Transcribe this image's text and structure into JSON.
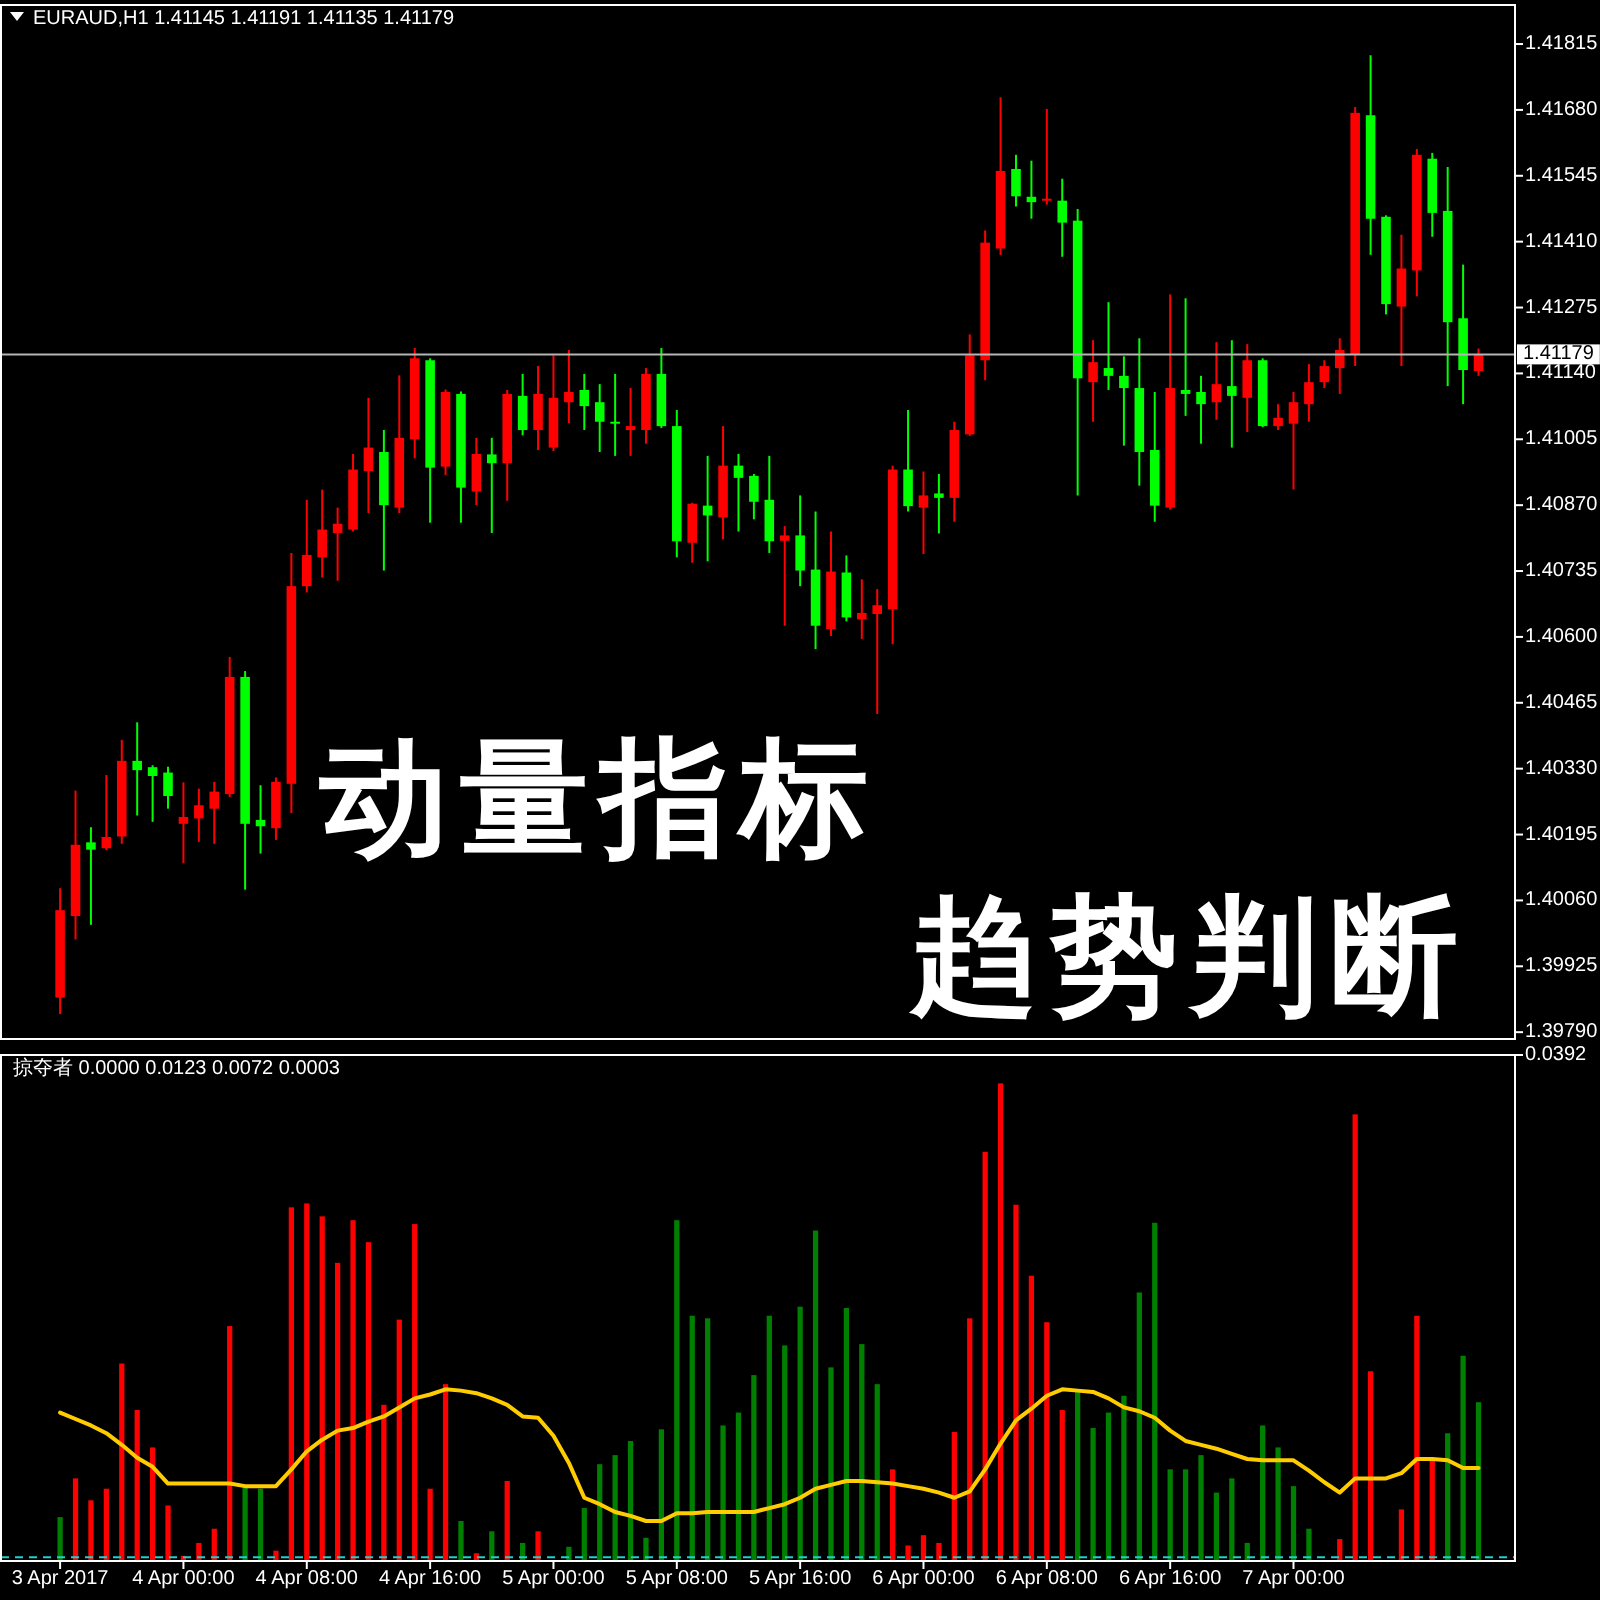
{
  "chart_data": [
    {
      "type": "candlestick",
      "title": "EURAUD,H1 1.41145 1.41191 1.41135 1.41179",
      "annotations": [
        "动量指标",
        "趋势判断"
      ],
      "x": [
        "2017-04-03T16:00",
        "2017-04-03T17:00",
        "2017-04-03T18:00",
        "2017-04-03T19:00",
        "2017-04-03T20:00",
        "2017-04-03T21:00",
        "2017-04-03T22:00",
        "2017-04-03T23:00",
        "2017-04-04T00:00",
        "2017-04-04T01:00",
        "2017-04-04T02:00",
        "2017-04-04T03:00",
        "2017-04-04T04:00",
        "2017-04-04T05:00",
        "2017-04-04T06:00",
        "2017-04-04T07:00",
        "2017-04-04T08:00",
        "2017-04-04T09:00",
        "2017-04-04T10:00",
        "2017-04-04T11:00",
        "2017-04-04T12:00",
        "2017-04-04T13:00",
        "2017-04-04T14:00",
        "2017-04-04T15:00",
        "2017-04-04T16:00",
        "2017-04-04T17:00",
        "2017-04-04T18:00",
        "2017-04-04T19:00",
        "2017-04-04T20:00",
        "2017-04-04T21:00",
        "2017-04-04T22:00",
        "2017-04-04T23:00",
        "2017-04-05T00:00",
        "2017-04-05T01:00",
        "2017-04-05T02:00",
        "2017-04-05T03:00",
        "2017-04-05T04:00",
        "2017-04-05T05:00",
        "2017-04-05T06:00",
        "2017-04-05T07:00",
        "2017-04-05T08:00",
        "2017-04-05T09:00",
        "2017-04-05T10:00",
        "2017-04-05T11:00",
        "2017-04-05T12:00",
        "2017-04-05T13:00",
        "2017-04-05T14:00",
        "2017-04-05T15:00",
        "2017-04-05T16:00",
        "2017-04-05T17:00",
        "2017-04-05T18:00",
        "2017-04-05T19:00",
        "2017-04-05T20:00",
        "2017-04-05T21:00",
        "2017-04-05T22:00",
        "2017-04-05T23:00",
        "2017-04-06T00:00",
        "2017-04-06T01:00",
        "2017-04-06T02:00",
        "2017-04-06T03:00",
        "2017-04-06T04:00",
        "2017-04-06T05:00",
        "2017-04-06T06:00",
        "2017-04-06T07:00",
        "2017-04-06T08:00",
        "2017-04-06T09:00",
        "2017-04-06T10:00",
        "2017-04-06T11:00",
        "2017-04-06T12:00",
        "2017-04-06T13:00",
        "2017-04-06T14:00",
        "2017-04-06T15:00",
        "2017-04-06T16:00",
        "2017-04-06T17:00",
        "2017-04-06T18:00",
        "2017-04-06T19:00",
        "2017-04-06T20:00",
        "2017-04-06T21:00",
        "2017-04-06T22:00",
        "2017-04-06T23:00",
        "2017-04-07T00:00",
        "2017-04-07T01:00",
        "2017-04-07T02:00",
        "2017-04-07T03:00",
        "2017-04-07T04:00",
        "2017-04-07T05:00",
        "2017-04-07T06:00",
        "2017-04-07T07:00",
        "2017-04-07T08:00",
        "2017-04-07T09:00",
        "2017-04-07T10:00",
        "2017-04-07T11:00",
        "2017-04-07T12:00"
      ],
      "ohlc": [
        [
          1.39861,
          1.40085,
          1.39827,
          1.4004
        ],
        [
          1.40028,
          1.40285,
          1.3998,
          1.40174
        ],
        [
          1.40179,
          1.4021,
          1.4001,
          1.40164
        ],
        [
          1.40167,
          1.40317,
          1.40163,
          1.4019
        ],
        [
          1.40191,
          1.40389,
          1.40176,
          1.40346
        ],
        [
          1.40346,
          1.40425,
          1.40234,
          1.40327
        ],
        [
          1.40333,
          1.40337,
          1.40221,
          1.40315
        ],
        [
          1.40322,
          1.40334,
          1.40248,
          1.40274
        ],
        [
          1.40217,
          1.40302,
          1.40136,
          1.40231
        ],
        [
          1.40228,
          1.40289,
          1.4018,
          1.40255
        ],
        [
          1.40248,
          1.40303,
          1.40176,
          1.40283
        ],
        [
          1.40278,
          1.40559,
          1.40272,
          1.40518
        ],
        [
          1.40518,
          1.4053,
          1.40082,
          1.40217
        ],
        [
          1.40225,
          1.40296,
          1.40156,
          1.40212
        ],
        [
          1.40208,
          1.40312,
          1.40184,
          1.40303
        ],
        [
          1.40299,
          1.40772,
          1.40239,
          1.40704
        ],
        [
          1.40704,
          1.40881,
          1.40691,
          1.40768
        ],
        [
          1.40763,
          1.40902,
          1.40722,
          1.4082
        ],
        [
          1.40813,
          1.40865,
          1.40715,
          1.40832
        ],
        [
          1.4082,
          1.40975,
          1.40816,
          1.40943
        ],
        [
          1.4094,
          1.4109,
          1.40854,
          1.40988
        ],
        [
          1.40979,
          1.41024,
          1.40736,
          1.4087
        ],
        [
          1.40865,
          1.41136,
          1.40854,
          1.41008
        ],
        [
          1.41005,
          1.41192,
          1.40966,
          1.41171
        ],
        [
          1.41167,
          1.41171,
          1.40834,
          1.40947
        ],
        [
          1.40949,
          1.41107,
          1.40932,
          1.41102
        ],
        [
          1.41098,
          1.41103,
          1.40834,
          1.40906
        ],
        [
          1.40898,
          1.41008,
          1.4087,
          1.40975
        ],
        [
          1.40974,
          1.41008,
          1.40813,
          1.40956
        ],
        [
          1.40956,
          1.41106,
          1.40879,
          1.41098
        ],
        [
          1.41094,
          1.41139,
          1.41013,
          1.41024
        ],
        [
          1.41024,
          1.41155,
          1.40983,
          1.41098
        ],
        [
          1.40988,
          1.41177,
          1.40981,
          1.4109
        ],
        [
          1.41081,
          1.41188,
          1.41038,
          1.41102
        ],
        [
          1.41106,
          1.41139,
          1.41024,
          1.41073
        ],
        [
          1.41081,
          1.41118,
          1.40979,
          1.41041
        ],
        [
          1.41041,
          1.41139,
          1.40971,
          1.41037
        ],
        [
          1.41024,
          1.4111,
          1.40971,
          1.41032
        ],
        [
          1.41024,
          1.41151,
          1.40996,
          1.41139
        ],
        [
          1.41139,
          1.41192,
          1.41028,
          1.41032
        ],
        [
          1.41032,
          1.41065,
          1.40763,
          1.40796
        ],
        [
          1.40793,
          1.40875,
          1.40752,
          1.40873
        ],
        [
          1.40869,
          1.40971,
          1.40755,
          1.40849
        ],
        [
          1.40845,
          1.41032,
          1.408,
          1.40951
        ],
        [
          1.40951,
          1.40975,
          1.40816,
          1.40926
        ],
        [
          1.4093,
          1.40934,
          1.40841,
          1.40877
        ],
        [
          1.40881,
          1.40971,
          1.40772,
          1.40796
        ],
        [
          1.40797,
          1.40827,
          1.40623,
          1.40808
        ],
        [
          1.40808,
          1.4089,
          1.40704,
          1.40736
        ],
        [
          1.40738,
          1.40857,
          1.40575,
          1.40623
        ],
        [
          1.40616,
          1.40816,
          1.40602,
          1.40734
        ],
        [
          1.40732,
          1.40767,
          1.40632,
          1.4064
        ],
        [
          1.40636,
          1.40718,
          1.40596,
          1.40649
        ],
        [
          1.40647,
          1.40698,
          1.40442,
          1.40665
        ],
        [
          1.40657,
          1.40951,
          1.40585,
          1.40943
        ],
        [
          1.40943,
          1.41065,
          1.40857,
          1.40868
        ],
        [
          1.40865,
          1.40939,
          1.4077,
          1.4089
        ],
        [
          1.40894,
          1.40934,
          1.40812,
          1.40885
        ],
        [
          1.40885,
          1.41041,
          1.40836,
          1.41024
        ],
        [
          1.41015,
          1.4122,
          1.41012,
          1.41177
        ],
        [
          1.41167,
          1.41433,
          1.41126,
          1.41408
        ],
        [
          1.41396,
          1.41706,
          1.41383,
          1.41555
        ],
        [
          1.41559,
          1.41588,
          1.41482,
          1.41503
        ],
        [
          1.41502,
          1.41576,
          1.41457,
          1.41491
        ],
        [
          1.41494,
          1.41682,
          1.41486,
          1.41498
        ],
        [
          1.41494,
          1.41539,
          1.41379,
          1.41449
        ],
        [
          1.41453,
          1.41477,
          1.4089,
          1.4113
        ],
        [
          1.41122,
          1.41208,
          1.41041,
          1.41163
        ],
        [
          1.41151,
          1.41286,
          1.41106,
          1.41135
        ],
        [
          1.41135,
          1.41175,
          1.40992,
          1.4111
        ],
        [
          1.4111,
          1.41212,
          1.4091,
          1.40979
        ],
        [
          1.40983,
          1.41102,
          1.40836,
          1.40869
        ],
        [
          1.40865,
          1.41302,
          1.40861,
          1.4111
        ],
        [
          1.41106,
          1.41294,
          1.41053,
          1.41098
        ],
        [
          1.41102,
          1.41135,
          1.40996,
          1.41077
        ],
        [
          1.41081,
          1.41204,
          1.41045,
          1.41118
        ],
        [
          1.41114,
          1.41208,
          1.40988,
          1.41094
        ],
        [
          1.4109,
          1.412,
          1.4102,
          1.41167
        ],
        [
          1.41167,
          1.41171,
          1.4103,
          1.41032
        ],
        [
          1.41032,
          1.41077,
          1.41024,
          1.41049
        ],
        [
          1.41037,
          1.41102,
          1.40902,
          1.41081
        ],
        [
          1.41077,
          1.41159,
          1.41041,
          1.41122
        ],
        [
          1.41122,
          1.41167,
          1.4111,
          1.41155
        ],
        [
          1.41151,
          1.41212,
          1.41098,
          1.41188
        ],
        [
          1.41179,
          1.41686,
          1.41155,
          1.41674
        ],
        [
          1.41669,
          1.41792,
          1.41383,
          1.41457
        ],
        [
          1.41461,
          1.41464,
          1.41261,
          1.41282
        ],
        [
          1.41277,
          1.41424,
          1.41155,
          1.41355
        ],
        [
          1.41351,
          1.416,
          1.41298,
          1.41588
        ],
        [
          1.4158,
          1.41592,
          1.4142,
          1.41469
        ],
        [
          1.41473,
          1.41563,
          1.41114,
          1.41245
        ],
        [
          1.41253,
          1.41363,
          1.41077,
          1.41147
        ],
        [
          1.41145,
          1.41191,
          1.41135,
          1.41179
        ]
      ],
      "colors": [
        "#ff0000",
        "#ff0000",
        "#00ff00",
        "#ff0000",
        "#ff0000",
        "#00ff00",
        "#00ff00",
        "#00ff00",
        "#ff0000",
        "#ff0000",
        "#ff0000",
        "#ff0000",
        "#00ff00",
        "#00ff00",
        "#ff0000",
        "#ff0000",
        "#ff0000",
        "#ff0000",
        "#ff0000",
        "#ff0000",
        "#ff0000",
        "#00ff00",
        "#ff0000",
        "#ff0000",
        "#00ff00",
        "#ff0000",
        "#00ff00",
        "#ff0000",
        "#00ff00",
        "#ff0000",
        "#00ff00",
        "#ff0000",
        "#ff0000",
        "#ff0000",
        "#00ff00",
        "#00ff00",
        "#00ff00",
        "#ff0000",
        "#ff0000",
        "#00ff00",
        "#00ff00",
        "#ff0000",
        "#00ff00",
        "#ff0000",
        "#00ff00",
        "#00ff00",
        "#00ff00",
        "#ff0000",
        "#00ff00",
        "#00ff00",
        "#ff0000",
        "#00ff00",
        "#ff0000",
        "#ff0000",
        "#ff0000",
        "#00ff00",
        "#ff0000",
        "#00ff00",
        "#ff0000",
        "#ff0000",
        "#ff0000",
        "#ff0000",
        "#00ff00",
        "#00ff00",
        "#ff0000",
        "#00ff00",
        "#00ff00",
        "#ff0000",
        "#00ff00",
        "#00ff00",
        "#00ff00",
        "#00ff00",
        "#ff0000",
        "#00ff00",
        "#00ff00",
        "#ff0000",
        "#00ff00",
        "#ff0000",
        "#00ff00",
        "#ff0000",
        "#ff0000",
        "#ff0000",
        "#ff0000",
        "#ff0000",
        "#ff0000",
        "#00ff00",
        "#00ff00",
        "#ff0000",
        "#ff0000",
        "#00ff00",
        "#00ff00",
        "#00ff00",
        "#ff0000"
      ],
      "xlim": [
        "2017-04-03T12:10",
        "2017-04-07T14:22"
      ],
      "ylim": [
        1.39776,
        1.41895
      ],
      "yticks": [
        1.41815,
        {
          "value": 1.4168,
          "label": "1.41680"
        },
        1.41545,
        {
          "value": 1.4141,
          "label": "1.41410"
        },
        1.41275,
        {
          "value": 1.4114,
          "label": "1.41140"
        },
        1.41005,
        {
          "value": 1.4087,
          "label": "1.40870"
        },
        1.40735,
        {
          "value": 1.406,
          "label": "1.40600"
        },
        1.40465,
        {
          "value": 1.4033,
          "label": "1.40330"
        },
        1.40195,
        {
          "value": 1.4006,
          "label": "1.40060"
        },
        1.39925,
        {
          "value": 1.3979,
          "label": "1.39790"
        }
      ],
      "tick_labels": "y",
      "ref_lines": [
        {
          "axis": "y",
          "value": 1.41179,
          "label": "1.41179",
          "color": "#b4b4b4"
        }
      ]
    },
    {
      "type": "bar",
      "title": "掠夺者 0.0000 0.0123 0.0072 0.0003",
      "x": [
        "2017-04-03T16:00",
        "2017-04-03T17:00",
        "2017-04-03T18:00",
        "2017-04-03T19:00",
        "2017-04-03T20:00",
        "2017-04-03T21:00",
        "2017-04-03T22:00",
        "2017-04-03T23:00",
        "2017-04-04T00:00",
        "2017-04-04T01:00",
        "2017-04-04T02:00",
        "2017-04-04T03:00",
        "2017-04-04T04:00",
        "2017-04-04T05:00",
        "2017-04-04T06:00",
        "2017-04-04T07:00",
        "2017-04-04T08:00",
        "2017-04-04T09:00",
        "2017-04-04T10:00",
        "2017-04-04T11:00",
        "2017-04-04T12:00",
        "2017-04-04T13:00",
        "2017-04-04T14:00",
        "2017-04-04T15:00",
        "2017-04-04T16:00",
        "2017-04-04T17:00",
        "2017-04-04T18:00",
        "2017-04-04T19:00",
        "2017-04-04T20:00",
        "2017-04-04T21:00",
        "2017-04-04T22:00",
        "2017-04-04T23:00",
        "2017-04-05T00:00",
        "2017-04-05T01:00",
        "2017-04-05T02:00",
        "2017-04-05T03:00",
        "2017-04-05T04:00",
        "2017-04-05T05:00",
        "2017-04-05T06:00",
        "2017-04-05T07:00",
        "2017-04-05T08:00",
        "2017-04-05T09:00",
        "2017-04-05T10:00",
        "2017-04-05T11:00",
        "2017-04-05T12:00",
        "2017-04-05T13:00",
        "2017-04-05T14:00",
        "2017-04-05T15:00",
        "2017-04-05T16:00",
        "2017-04-05T17:00",
        "2017-04-05T18:00",
        "2017-04-05T19:00",
        "2017-04-05T20:00",
        "2017-04-05T21:00",
        "2017-04-05T22:00",
        "2017-04-05T23:00",
        "2017-04-06T00:00",
        "2017-04-06T01:00",
        "2017-04-06T02:00",
        "2017-04-06T03:00",
        "2017-04-06T04:00",
        "2017-04-06T05:00",
        "2017-04-06T06:00",
        "2017-04-06T07:00",
        "2017-04-06T08:00",
        "2017-04-06T09:00",
        "2017-04-06T10:00",
        "2017-04-06T11:00",
        "2017-04-06T12:00",
        "2017-04-06T13:00",
        "2017-04-06T14:00",
        "2017-04-06T15:00",
        "2017-04-06T16:00",
        "2017-04-06T17:00",
        "2017-04-06T18:00",
        "2017-04-06T19:00",
        "2017-04-06T20:00",
        "2017-04-06T21:00",
        "2017-04-06T22:00",
        "2017-04-06T23:00",
        "2017-04-07T00:00",
        "2017-04-07T01:00",
        "2017-04-07T02:00",
        "2017-04-07T03:00",
        "2017-04-07T04:00",
        "2017-04-07T05:00",
        "2017-04-07T06:00",
        "2017-04-07T07:00",
        "2017-04-07T08:00",
        "2017-04-07T09:00",
        "2017-04-07T10:00",
        "2017-04-07T11:00",
        "2017-04-07T12:00"
      ],
      "series": [
        {
          "color": "#ff0000",
          "values": [
            null,
            0.0064,
            0.0047,
            0.0056,
            0.0153,
            0.0117,
            0.0088,
            0.0043,
            0.0004,
            0.0014,
            0.0025,
            0.0182,
            null,
            null,
            0.0008,
            0.0274,
            0.0277,
            0.0267,
            0.0231,
            0.0264,
            0.0247,
            0.0121,
            0.0187,
            0.0261,
            0.0056,
            0.0137,
            null,
            0.0006,
            null,
            0.0062,
            null,
            0.0023,
            null,
            null,
            null,
            null,
            null,
            null,
            null,
            null,
            null,
            null,
            null,
            null,
            null,
            null,
            null,
            null,
            null,
            null,
            null,
            null,
            null,
            null,
            0.0071,
            0.0012,
            0.002,
            0.0014,
            0.01,
            0.0188,
            0.0317,
            0.037,
            0.0276,
            0.0221,
            0.0185,
            0.0117,
            null,
            null,
            null,
            null,
            null,
            null,
            null,
            null,
            null,
            null,
            null,
            null,
            null,
            null,
            null,
            null,
            null,
            0.0017,
            0.0346,
            0.0147,
            null,
            0.004,
            0.019,
            0.0078,
            null,
            null,
            null
          ]
        },
        {
          "color": "#008000",
          "values": [
            0.0034,
            null,
            null,
            null,
            null,
            null,
            null,
            null,
            null,
            null,
            null,
            null,
            0.0058,
            0.0056,
            null,
            null,
            null,
            null,
            null,
            null,
            null,
            null,
            null,
            null,
            null,
            null,
            0.0031,
            null,
            0.0023,
            null,
            0.0014,
            null,
            null,
            0.0011,
            0.0041,
            0.0075,
            0.0082,
            0.0093,
            0.0018,
            0.0102,
            0.0264,
            0.019,
            0.0188,
            0.0105,
            0.0115,
            0.0144,
            0.019,
            0.0167,
            0.0197,
            0.0256,
            0.015,
            0.0196,
            0.0168,
            0.0137,
            null,
            null,
            null,
            null,
            null,
            null,
            null,
            null,
            null,
            null,
            null,
            null,
            0.0131,
            0.0103,
            0.0115,
            0.0128,
            0.0208,
            0.0262,
            0.0071,
            0.0071,
            0.0082,
            0.0053,
            0.0064,
            0.0014,
            0.0105,
            0.0088,
            0.0058,
            0.0025,
            null,
            null,
            null,
            null,
            null,
            null,
            null,
            null,
            0.0099,
            0.0159,
            0.0123
          ]
        },
        {
          "type": "line",
          "color": "#ffcc00",
          "values": [
            0.0115,
            0.011,
            0.0105,
            0.0099,
            0.009,
            0.008,
            0.0073,
            0.006,
            0.006,
            0.006,
            0.006,
            0.006,
            0.0058,
            0.0058,
            0.0058,
            0.0071,
            0.0085,
            0.0094,
            0.0101,
            0.0103,
            0.0108,
            0.0112,
            0.0119,
            0.0126,
            0.0129,
            0.0133,
            0.0132,
            0.013,
            0.0126,
            0.0121,
            0.0112,
            0.0111,
            0.0097,
            0.0076,
            0.0049,
            0.0044,
            0.0038,
            0.0035,
            0.0031,
            0.0031,
            0.0037,
            0.0037,
            0.0038,
            0.0038,
            0.0038,
            0.0038,
            0.0041,
            0.0044,
            0.0049,
            0.0056,
            0.0059,
            0.0062,
            0.0062,
            0.0061,
            0.006,
            0.0058,
            0.0056,
            0.0053,
            0.0049,
            0.0054,
            0.0071,
            0.0091,
            0.0109,
            0.0118,
            0.0128,
            0.0133,
            0.0132,
            0.0131,
            0.0126,
            0.0119,
            0.0116,
            0.0111,
            0.0101,
            0.0093,
            0.009,
            0.0087,
            0.0083,
            0.0079,
            0.0078,
            0.0078,
            0.0078,
            0.007,
            0.0061,
            0.0053,
            0.0064,
            0.0064,
            0.0064,
            0.0068,
            0.0079,
            0.0079,
            0.0078,
            0.0072,
            0.0072
          ]
        }
      ],
      "xlim": [
        "2017-04-03T12:10",
        "2017-04-07T14:22"
      ],
      "xticks": [
        {
          "value": "2017-04-03T16:00",
          "label": "3 Apr 2017"
        },
        {
          "value": "2017-04-04T00:00",
          "label": "4 Apr 00:00"
        },
        {
          "value": "2017-04-04T08:00",
          "label": "4 Apr 08:00"
        },
        {
          "value": "2017-04-04T16:00",
          "label": "4 Apr 16:00"
        },
        {
          "value": "2017-04-05T00:00",
          "label": "5 Apr 00:00"
        },
        {
          "value": "2017-04-05T08:00",
          "label": "5 Apr 08:00"
        },
        {
          "value": "2017-04-05T16:00",
          "label": "5 Apr 16:00"
        },
        {
          "value": "2017-04-06T00:00",
          "label": "6 Apr 00:00"
        },
        {
          "value": "2017-04-06T08:00",
          "label": "6 Apr 08:00"
        },
        {
          "value": "2017-04-06T16:00",
          "label": "6 Apr 16:00"
        },
        {
          "value": "2017-04-07T00:00",
          "label": "7 Apr 00:00"
        }
      ],
      "ylim": [
        0,
        0.0392
      ],
      "yticks": [
        0.0392
      ],
      "ref_lines": [
        {
          "axis": "y",
          "value": 0.0003,
          "color": "#20d0d0",
          "line_style": "dashed"
        }
      ]
    }
  ]
}
